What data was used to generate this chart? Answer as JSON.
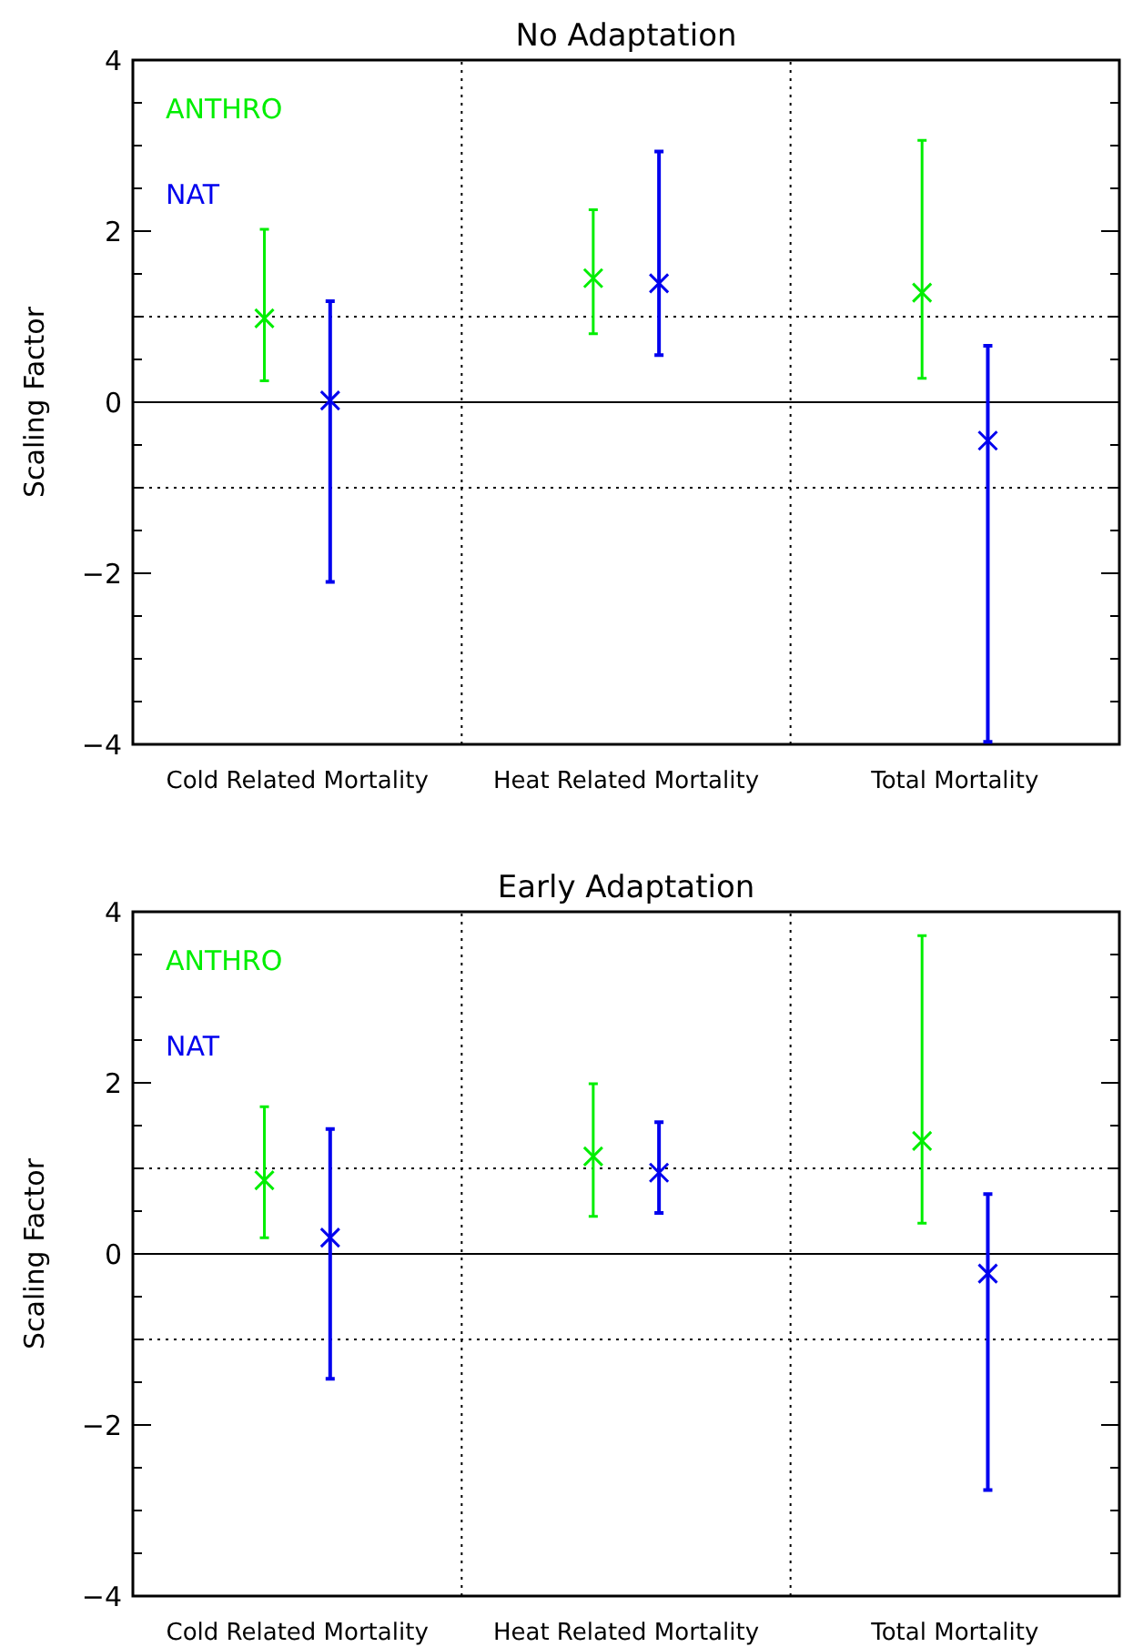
{
  "chart_data": [
    {
      "type": "scatter",
      "title": "No Adaptation",
      "ylabel": "Scaling Factor",
      "categories": [
        "Cold Related Mortality",
        "Heat Related Mortality",
        "Total Mortality"
      ],
      "ylim": [
        -4,
        4
      ],
      "yticks": [
        -4,
        {
          "value": -3.5,
          "label": null
        },
        {
          "value": -3,
          "label": null
        },
        {
          "value": -2.5,
          "label": null
        },
        -2,
        {
          "value": -1.5,
          "label": null
        },
        {
          "value": -1,
          "label": null
        },
        {
          "value": -0.5,
          "label": null
        },
        0,
        {
          "value": 0.5,
          "label": null
        },
        {
          "value": 1,
          "label": null
        },
        {
          "value": 1.5,
          "label": null
        },
        2,
        {
          "value": 2.5,
          "label": null
        },
        {
          "value": 3,
          "label": null
        },
        {
          "value": 3.5,
          "label": null
        },
        4
      ],
      "marker": "cross",
      "legend": "top left",
      "grid": false,
      "ref_lines": [
        {
          "axis": "y",
          "value": 1,
          "line_style": "dotted"
        },
        {
          "axis": "y",
          "value": -1,
          "line_style": "dotted"
        },
        {
          "axis": "y",
          "value": 0,
          "line_style": "solid"
        }
      ],
      "series": [
        {
          "name": "ANTHRO",
          "color": "#00ee00",
          "values": [
            0.98,
            1.45,
            1.28
          ],
          "errors": [
            [
              0.25,
              2.02
            ],
            [
              0.8,
              2.25
            ],
            [
              0.28,
              3.06
            ]
          ]
        },
        {
          "name": "NAT",
          "color": "#0000ee",
          "values": [
            0.02,
            1.39,
            -0.45
          ],
          "errors": [
            [
              -2.1,
              1.18
            ],
            [
              0.55,
              2.93
            ],
            [
              -3.97,
              0.66
            ]
          ]
        }
      ]
    },
    {
      "type": "scatter",
      "title": "Early Adaptation",
      "ylabel": "Scaling Factor",
      "categories": [
        "Cold Related Mortality",
        "Heat Related Mortality",
        "Total Mortality"
      ],
      "ylim": [
        -4,
        4
      ],
      "yticks": [
        -4,
        {
          "value": -3.5,
          "label": null
        },
        {
          "value": -3,
          "label": null
        },
        {
          "value": -2.5,
          "label": null
        },
        -2,
        {
          "value": -1.5,
          "label": null
        },
        {
          "value": -1,
          "label": null
        },
        {
          "value": -0.5,
          "label": null
        },
        0,
        {
          "value": 0.5,
          "label": null
        },
        {
          "value": 1,
          "label": null
        },
        {
          "value": 1.5,
          "label": null
        },
        2,
        {
          "value": 2.5,
          "label": null
        },
        {
          "value": 3,
          "label": null
        },
        {
          "value": 3.5,
          "label": null
        },
        4
      ],
      "marker": "cross",
      "legend": "top left",
      "grid": false,
      "ref_lines": [
        {
          "axis": "y",
          "value": 1,
          "line_style": "dotted"
        },
        {
          "axis": "y",
          "value": -1,
          "line_style": "dotted"
        },
        {
          "axis": "y",
          "value": 0,
          "line_style": "solid"
        }
      ],
      "series": [
        {
          "name": "ANTHRO",
          "color": "#00ee00",
          "values": [
            0.86,
            1.14,
            1.32
          ],
          "errors": [
            [
              0.19,
              1.72
            ],
            [
              0.44,
              1.99
            ],
            [
              0.36,
              3.72
            ]
          ]
        },
        {
          "name": "NAT",
          "color": "#0000ee",
          "values": [
            0.19,
            0.95,
            -0.23
          ],
          "errors": [
            [
              -1.46,
              1.46
            ],
            [
              0.48,
              1.54
            ],
            [
              -2.76,
              0.7
            ]
          ]
        }
      ]
    }
  ]
}
